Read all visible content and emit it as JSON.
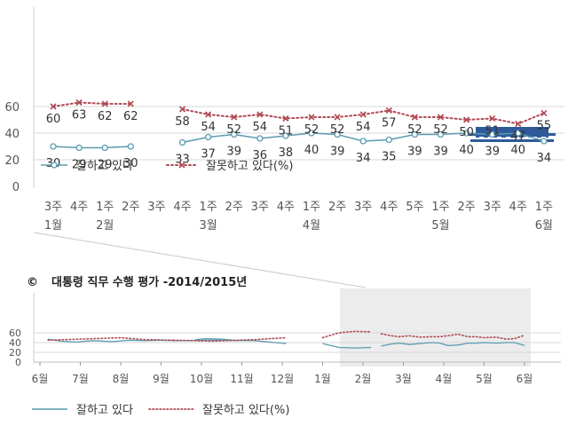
{
  "colors": {
    "good": "#5b9bb0",
    "bad": "#b04a55",
    "axis_text": "#555555",
    "grid": "#d8d8d8",
    "highlight": "#ececec",
    "building": "#2f5a9a"
  },
  "chart_data": [
    {
      "type": "line",
      "grid": true,
      "ylim": [
        0,
        70
      ],
      "yticks": [
        0,
        20,
        40,
        60
      ],
      "legend": "bottom-left",
      "x_labels": [
        {
          "week": "3주",
          "month": "1월"
        },
        {
          "week": "4주",
          "month": ""
        },
        {
          "week": "1주",
          "month": "2월"
        },
        {
          "week": "2주",
          "month": ""
        },
        {
          "week": "3주",
          "month": ""
        },
        {
          "week": "4주",
          "month": ""
        },
        {
          "week": "1주",
          "month": "3월"
        },
        {
          "week": "2주",
          "month": ""
        },
        {
          "week": "3주",
          "month": ""
        },
        {
          "week": "4주",
          "month": ""
        },
        {
          "week": "1주",
          "month": "4월"
        },
        {
          "week": "2주",
          "month": ""
        },
        {
          "week": "3주",
          "month": ""
        },
        {
          "week": "4주",
          "month": ""
        },
        {
          "week": "5주",
          "month": ""
        },
        {
          "week": "1주",
          "month": "5월"
        },
        {
          "week": "2주",
          "month": ""
        },
        {
          "week": "3주",
          "month": ""
        },
        {
          "week": "4주",
          "month": ""
        },
        {
          "week": "1주",
          "month": "6월"
        }
      ],
      "series": [
        {
          "name": "잘하고 있다",
          "color": "#5b9bb0",
          "segments": [
            {
              "x": [
                0,
                1,
                2,
                3
              ],
              "y": [
                30,
                29,
                29,
                30
              ]
            },
            {
              "x": [
                5,
                6,
                7,
                8,
                9,
                10,
                11,
                12,
                13,
                14,
                15,
                16,
                17,
                18,
                19
              ],
              "y": [
                33,
                37,
                39,
                36,
                38,
                40,
                39,
                34,
                35,
                39,
                39,
                40,
                39,
                40,
                34
              ]
            }
          ]
        },
        {
          "name": "잘못하고 있다(%)",
          "color": "#b04a55",
          "segments": [
            {
              "x": [
                0,
                1,
                2,
                3
              ],
              "y": [
                60,
                63,
                62,
                62
              ]
            },
            {
              "x": [
                5,
                6,
                7,
                8,
                9,
                10,
                11,
                12,
                13,
                14,
                15,
                16,
                17,
                18,
                19
              ],
              "y": [
                58,
                54,
                52,
                54,
                51,
                52,
                52,
                54,
                57,
                52,
                52,
                50,
                51,
                47,
                55
              ]
            }
          ]
        }
      ]
    },
    {
      "type": "line",
      "title": "대통령 직무 수행 평가 -2014/2015년",
      "title_symbol": "©",
      "grid": true,
      "ylim": [
        0,
        70
      ],
      "yticks": [
        0,
        20,
        40,
        60
      ],
      "legend": "bottom",
      "x_labels": [
        "6월",
        "7월",
        "8월",
        "9월",
        "10월",
        "11월",
        "12월",
        "1월",
        "2월",
        "3월",
        "4월",
        "5월",
        "6월"
      ],
      "series": [
        {
          "name": "잘하고 있다",
          "color": "#5b9bb0",
          "segments": [
            {
              "x": [
                0.2,
                0.5,
                0.9,
                1.3,
                1.8,
                2.2,
                2.6,
                3.0,
                3.3
              ],
              "y": [
                47,
                43,
                41,
                44,
                42,
                45,
                44,
                45,
                44
              ]
            },
            {
              "x": [
                3.3,
                4.3,
                5.3,
                6.1
              ],
              "y": [
                44,
                45,
                44,
                38
              ]
            },
            {
              "x": [
                3.85,
                4.1,
                4.5,
                4.9
              ],
              "y": [
                46,
                48,
                47,
                44
              ]
            },
            {
              "x": [
                7.0,
                7.4,
                7.8,
                8.2
              ],
              "y": [
                38,
                30,
                29,
                30
              ]
            },
            {
              "x": [
                8.45,
                8.7,
                8.9,
                9.15,
                9.4,
                9.7,
                9.9,
                10.1,
                10.35,
                10.6,
                10.8,
                11.0,
                11.3,
                11.55,
                11.75,
                12.0
              ],
              "y": [
                33,
                37,
                39,
                36,
                38,
                40,
                39,
                34,
                35,
                39,
                39,
                40,
                39,
                40,
                40,
                34
              ]
            }
          ]
        },
        {
          "name": "잘못하고 있다(%)",
          "color": "#b04a55",
          "segments": [
            {
              "x": [
                0.2,
                1.0,
                2.0,
                2.6,
                3.3
              ],
              "y": [
                45,
                47,
                50,
                46,
                45
              ]
            },
            {
              "x": [
                3.3,
                4.3,
                5.3,
                6.1
              ],
              "y": [
                45,
                43,
                46,
                50
              ]
            },
            {
              "x": [
                7.0,
                7.4,
                7.8,
                8.2
              ],
              "y": [
                50,
                60,
                63,
                62
              ]
            },
            {
              "x": [
                8.45,
                8.7,
                8.9,
                9.15,
                9.4,
                9.7,
                9.9,
                10.1,
                10.35,
                10.6,
                10.8,
                11.0,
                11.3,
                11.55,
                11.75,
                12.0
              ],
              "y": [
                58,
                54,
                52,
                54,
                51,
                52,
                52,
                54,
                57,
                52,
                52,
                50,
                51,
                47,
                48,
                55
              ]
            }
          ]
        }
      ]
    }
  ]
}
